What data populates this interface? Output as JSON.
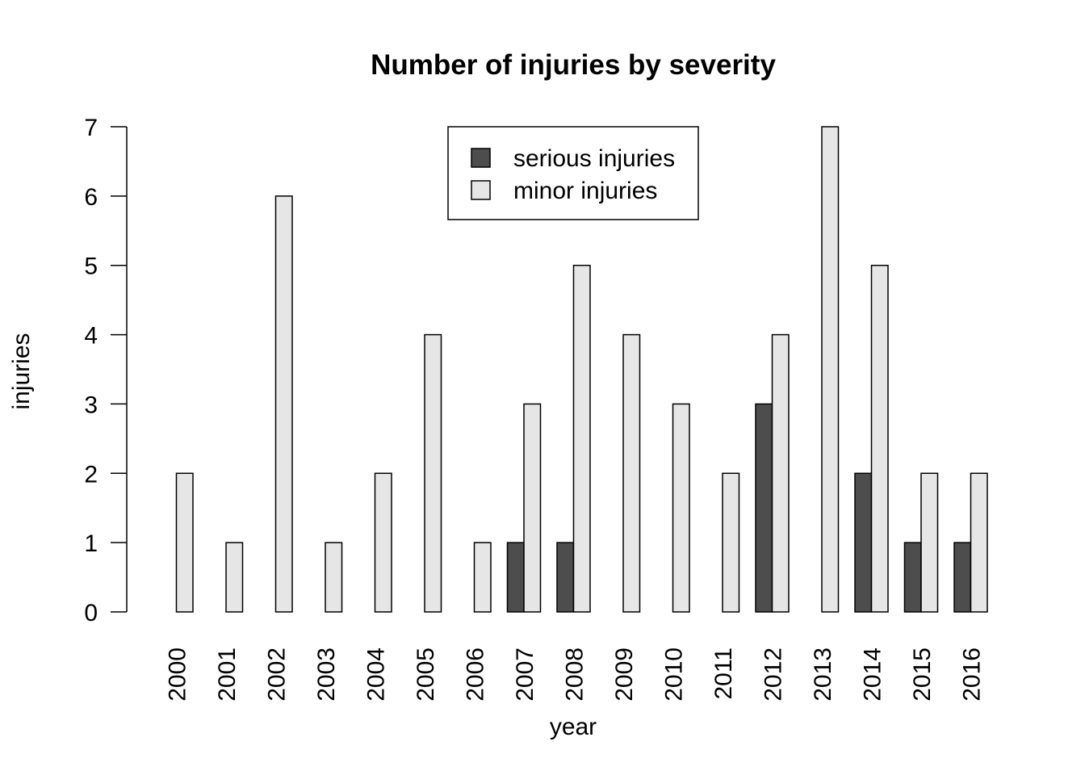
{
  "chart_data": {
    "type": "bar",
    "title": "Number of injuries by severity",
    "xlabel": "year",
    "ylabel": "injuries",
    "categories": [
      "2000",
      "2001",
      "2002",
      "2003",
      "2004",
      "2005",
      "2006",
      "2007",
      "2008",
      "2009",
      "2010",
      "2011",
      "2012",
      "2013",
      "2014",
      "2015",
      "2016"
    ],
    "series": [
      {
        "name": "serious injuries",
        "color": "#4d4d4d",
        "values": [
          0,
          0,
          0,
          0,
          0,
          0,
          0,
          1,
          1,
          0,
          0,
          0,
          3,
          0,
          2,
          1,
          1
        ]
      },
      {
        "name": "minor injuries",
        "color": "#e6e6e6",
        "values": [
          2,
          1,
          6,
          1,
          2,
          4,
          1,
          3,
          5,
          4,
          3,
          2,
          4,
          7,
          5,
          2,
          2
        ]
      }
    ],
    "ylim": [
      0,
      7
    ],
    "yticks": [
      0,
      1,
      2,
      3,
      4,
      5,
      6,
      7
    ],
    "grid": false,
    "legend_position": "top-center",
    "barmode": "grouped"
  }
}
